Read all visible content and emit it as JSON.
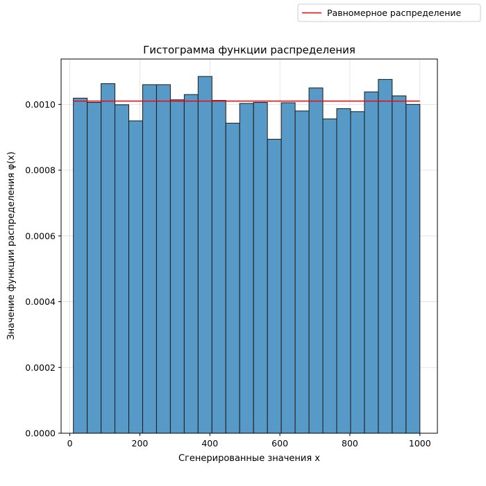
{
  "chart_data": {
    "type": "bar",
    "title": "Гистограмма функции распределения",
    "xlabel": "Сгенерированные значения x",
    "ylabel": "Значение функции распределения φ(x)",
    "xlim": [
      -25,
      1050
    ],
    "ylim": [
      0,
      0.001138
    ],
    "x_ticks": [
      0,
      200,
      400,
      600,
      800,
      1000
    ],
    "x_tick_labels": [
      "0",
      "200",
      "400",
      "600",
      "800",
      "1000"
    ],
    "y_ticks": [
      0,
      0.0002,
      0.0004,
      0.0006,
      0.0008,
      0.001
    ],
    "y_tick_labels": [
      "0.0000",
      "0.0002",
      "0.0004",
      "0.0006",
      "0.0008",
      "0.0010"
    ],
    "grid": true,
    "bin_edges": [
      10,
      49.6,
      89.2,
      128.8,
      168.4,
      208,
      247.6,
      287.2,
      326.8,
      366.4,
      406,
      445.6,
      485.2,
      524.8,
      564.4,
      604,
      643.6,
      683.2,
      722.8,
      762.4,
      802,
      841.6,
      881.2,
      920.8,
      960.4,
      1000
    ],
    "values": [
      0.001019,
      0.001006,
      0.001063,
      0.000999,
      0.00095,
      0.00106,
      0.00106,
      0.001014,
      0.00103,
      0.001085,
      0.001012,
      0.000943,
      0.001003,
      0.001006,
      0.000894,
      0.001005,
      0.00098,
      0.00105,
      0.000956,
      0.000987,
      0.000978,
      0.001038,
      0.001076,
      0.001026,
      0.001
    ],
    "bar_color": "#5799c7",
    "bar_edge_color": "#1a1a1a",
    "series": [
      {
        "name": "Равномерное распределение",
        "type": "line",
        "color": "#ff0000",
        "x": [
          10,
          1000
        ],
        "y": [
          0.00101,
          0.00101
        ]
      }
    ],
    "legend": {
      "placement": "top-right, outside plot area",
      "entries": [
        "Равномерное распределение"
      ]
    }
  }
}
